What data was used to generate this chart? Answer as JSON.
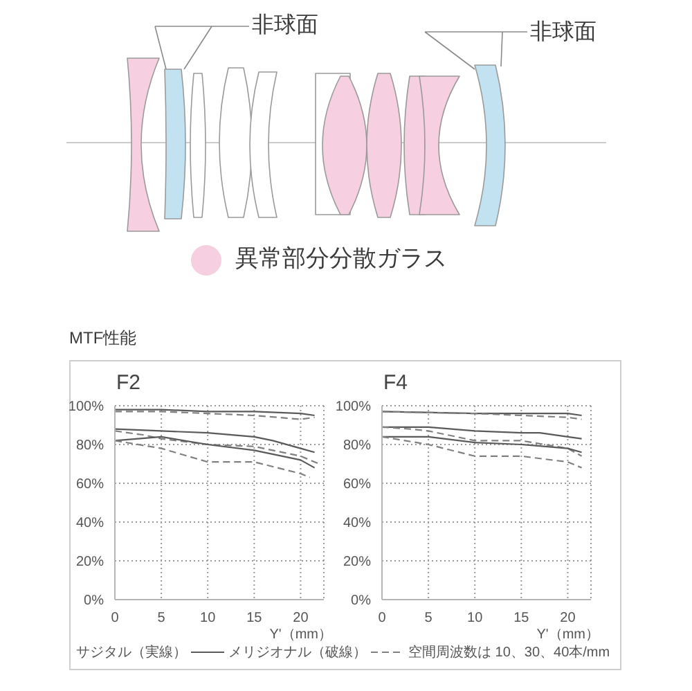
{
  "chart_data": [
    {
      "type": "other",
      "annotations": [
        "非球面",
        "非球面",
        "異常部分分散ガラス"
      ]
    },
    {
      "type": "line",
      "title": "F2",
      "xlabel": "Y'（mm）",
      "xlim": [
        0,
        22.5
      ],
      "xticks": [
        0,
        5,
        10,
        15,
        20
      ],
      "ylim": [
        0,
        100
      ],
      "yticks": [
        {
          "value": 0,
          "label": "0%"
        },
        {
          "value": 20,
          "label": "20%"
        },
        {
          "value": 40,
          "label": "40%"
        },
        {
          "value": 60,
          "label": "60%"
        },
        {
          "value": 80,
          "label": "80%"
        },
        {
          "value": 100,
          "label": "100%"
        }
      ],
      "grid": true,
      "annotations": [
        "MTF性能",
        "サジタル（実線）",
        "メリジオナル（破線）",
        "空間周波数は 10、30、40本/mm"
      ],
      "series": [
        {
          "color": "#5a5a5a",
          "line_style": "solid",
          "x": [
            0,
            5,
            10,
            15,
            20,
            21.5
          ],
          "values": [
            98,
            98,
            97,
            97,
            96,
            95
          ]
        },
        {
          "color": "#808080",
          "line_style": "dashed",
          "x": [
            0,
            5,
            10,
            15,
            20,
            21.5
          ],
          "values": [
            97,
            97,
            96,
            95,
            93,
            94
          ]
        },
        {
          "color": "#5a5a5a",
          "line_style": "solid",
          "x": [
            0,
            5,
            10,
            15,
            17,
            20,
            21.5
          ],
          "values": [
            88,
            87,
            86,
            84,
            82,
            78,
            76
          ]
        },
        {
          "color": "#808080",
          "line_style": "dashed",
          "x": [
            0,
            3,
            5,
            10,
            15,
            20,
            22
          ],
          "values": [
            87,
            85,
            83,
            80,
            79,
            74,
            70
          ]
        },
        {
          "color": "#5a5a5a",
          "line_style": "solid",
          "x": [
            0,
            5,
            10,
            15,
            20,
            21.5
          ],
          "values": [
            82,
            84,
            80,
            77,
            72,
            68
          ]
        },
        {
          "color": "#808080",
          "line_style": "dashed",
          "x": [
            0,
            5,
            10,
            15,
            20,
            21
          ],
          "values": [
            82,
            78,
            71,
            71,
            65,
            63
          ]
        }
      ]
    },
    {
      "type": "line",
      "title": "F4",
      "xlabel": "Y'（mm）",
      "xlim": [
        0,
        22.5
      ],
      "xticks": [
        0,
        5,
        10,
        15,
        20
      ],
      "ylim": [
        0,
        100
      ],
      "yticks": [
        {
          "value": 0,
          "label": "0%"
        },
        {
          "value": 20,
          "label": "20%"
        },
        {
          "value": 40,
          "label": "40%"
        },
        {
          "value": 60,
          "label": "60%"
        },
        {
          "value": 80,
          "label": "80%"
        },
        {
          "value": 100,
          "label": "100%"
        }
      ],
      "grid": true,
      "series": [
        {
          "color": "#5a5a5a",
          "line_style": "solid",
          "x": [
            0,
            10,
            15,
            20,
            21.5
          ],
          "values": [
            97,
            96,
            96,
            96,
            95
          ]
        },
        {
          "color": "#808080",
          "line_style": "dashed",
          "x": [
            0,
            10,
            15,
            20,
            21.5
          ],
          "values": [
            97,
            96,
            95,
            94,
            93
          ]
        },
        {
          "color": "#5a5a5a",
          "line_style": "solid",
          "x": [
            0,
            5,
            10,
            15,
            17,
            20,
            21.5
          ],
          "values": [
            89,
            89,
            87,
            86,
            86,
            84,
            83
          ]
        },
        {
          "color": "#808080",
          "line_style": "dashed",
          "x": [
            0,
            3,
            5,
            8,
            10,
            15,
            20,
            21.5
          ],
          "values": [
            89,
            88,
            87,
            84,
            82,
            82,
            78,
            74
          ]
        },
        {
          "color": "#5a5a5a",
          "line_style": "solid",
          "x": [
            0,
            5,
            10,
            15,
            20,
            21.5
          ],
          "values": [
            84,
            84,
            81,
            80,
            78,
            76
          ]
        },
        {
          "color": "#808080",
          "line_style": "dashed",
          "x": [
            0,
            5,
            10,
            15,
            20,
            21.5
          ],
          "values": [
            84,
            80,
            74,
            74,
            71,
            68
          ]
        }
      ]
    }
  ]
}
